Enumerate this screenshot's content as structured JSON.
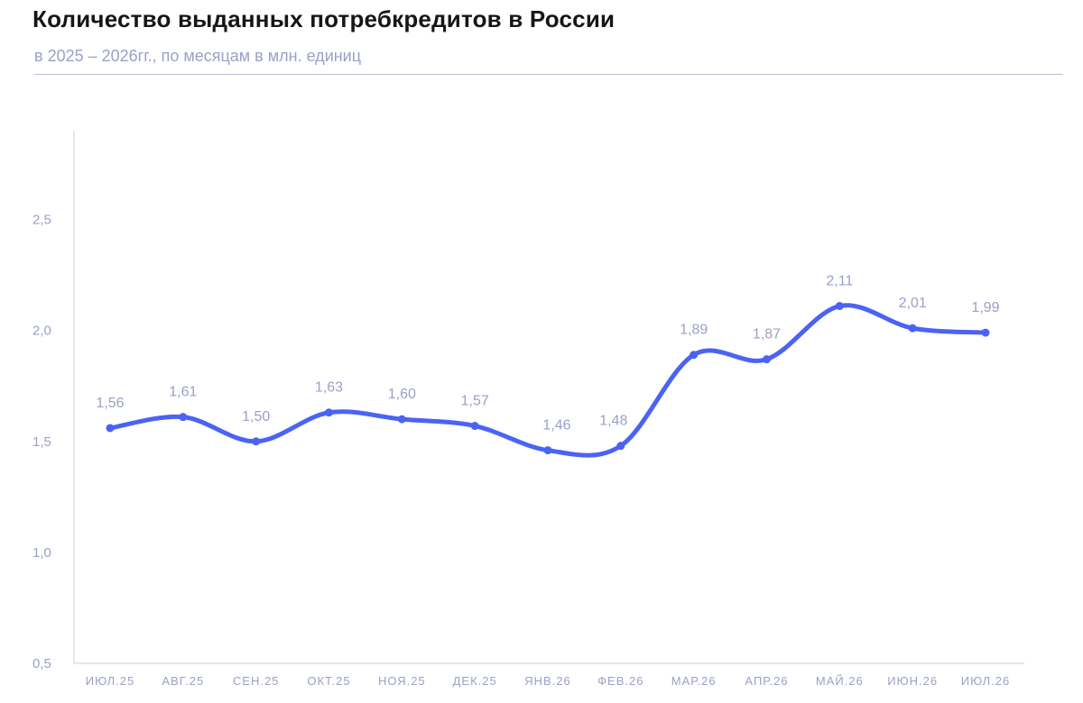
{
  "header": {
    "title": "Количество выданных потребкредитов в России",
    "subtitle": "в 2025 – 2026гг., по месяцам в млн. единиц"
  },
  "colors": {
    "line": "#4b63f5",
    "text_muted": "#9aa0c8",
    "axis": "#c9cde0"
  },
  "chart_data": {
    "type": "line",
    "categories": [
      "ИЮЛ.25",
      "АВГ.25",
      "СЕН.25",
      "ОКТ.25",
      "НОЯ.25",
      "ДЕК.25",
      "ЯНВ.26",
      "ФЕВ.26",
      "МАР.26",
      "АПР.26",
      "МАЙ.26",
      "ИЮН.26",
      "ИЮЛ.26"
    ],
    "values": [
      1.56,
      1.61,
      1.5,
      1.63,
      1.6,
      1.57,
      1.46,
      1.48,
      1.89,
      1.87,
      2.11,
      2.01,
      1.99
    ],
    "data_labels": [
      "1,56",
      "1,61",
      "1,50",
      "1,63",
      "1,60",
      "1,57",
      "1,46",
      "1,48",
      "1,89",
      "1,87",
      "2,11",
      "2,01",
      "1,99"
    ],
    "y_ticks": [
      0.5,
      1.0,
      1.5,
      2.0,
      2.5
    ],
    "y_tick_labels": [
      "0,5",
      "1,0",
      "1,5",
      "2,0",
      "2,5"
    ],
    "ylim": [
      0.5,
      2.9
    ],
    "grid": false,
    "legend": "none"
  }
}
